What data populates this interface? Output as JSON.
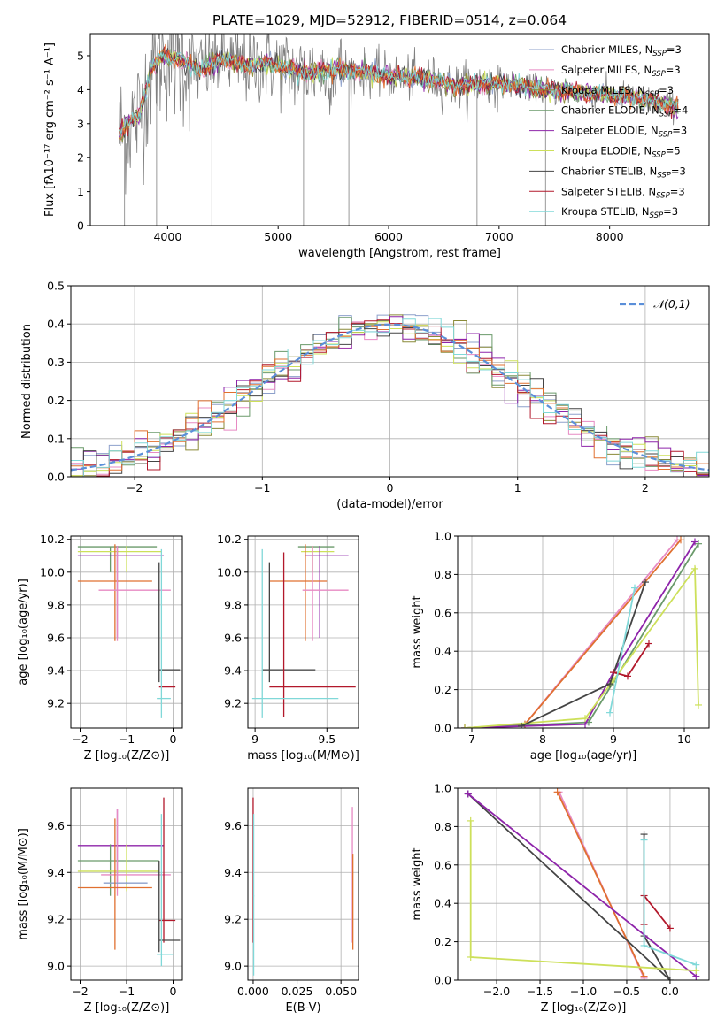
{
  "figure_title": "PLATE=1029, MJD=52912, FIBERID=0514, z=0.064",
  "colors": {
    "chabrier_miles": "#8da0cb",
    "salpeter_miles": "#e78ac3",
    "kroupa_miles": "#8a8a38",
    "chabrier_elodie": "#6a9a6a",
    "salpeter_elodie": "#8e24aa",
    "kroupa_elodie": "#cde05a",
    "chabrier_stelib": "#444444",
    "salpeter_stelib": "#b2182b",
    "kroupa_stelib": "#80d8d8",
    "data": "#808080",
    "orange": "#e07030",
    "normal": "#5b8fd9",
    "grid": "#b0b0b0"
  },
  "chart_data": [
    {
      "id": "spectrum",
      "type": "line",
      "title": "PLATE=1029, MJD=52912, FIBERID=0514, z=0.064",
      "xlabel": "wavelength [Angstrom, rest frame]",
      "ylabel": "Flux [fλ10⁻¹⁷ erg cm⁻² s⁻¹ A⁻¹]",
      "xlim": [
        3300,
        8900
      ],
      "ylim": [
        0,
        5.65
      ],
      "xticks": [
        4000,
        5000,
        6000,
        7000,
        8000
      ],
      "yticks": [
        0,
        1,
        2,
        3,
        4,
        5
      ],
      "legend_placement": "upper-right",
      "legend": [
        {
          "name": "Chabrier MILES, N",
          "sub": "SSP",
          "suffix": "=3"
        },
        {
          "name": "Salpeter MILES, N",
          "sub": "SSP",
          "suffix": "=3"
        },
        {
          "name": "Kroupa MILES, N",
          "sub": "SSP",
          "suffix": "=3"
        },
        {
          "name": "Chabrier ELODIE, N",
          "sub": "SSP",
          "suffix": "=4"
        },
        {
          "name": "Salpeter ELODIE, N",
          "sub": "SSP",
          "suffix": "=3"
        },
        {
          "name": "Kroupa ELODIE, N",
          "sub": "SSP",
          "suffix": "=5"
        },
        {
          "name": "Chabrier STELIB, N",
          "sub": "SSP",
          "suffix": "=3"
        },
        {
          "name": "Salpeter STELIB, N",
          "sub": "SSP",
          "suffix": "=3"
        },
        {
          "name": "Kroupa STELIB, N",
          "sub": "SSP",
          "suffix": "=3"
        }
      ],
      "model_trend": [
        [
          3560,
          2.7
        ],
        [
          3650,
          3.0
        ],
        [
          3750,
          3.3
        ],
        [
          3850,
          4.6
        ],
        [
          3950,
          5.0
        ],
        [
          4100,
          4.9
        ],
        [
          4300,
          4.6
        ],
        [
          4500,
          4.9
        ],
        [
          4700,
          4.7
        ],
        [
          4900,
          4.8
        ],
        [
          5200,
          4.5
        ],
        [
          5600,
          4.6
        ],
        [
          6000,
          4.4
        ],
        [
          6400,
          4.3
        ],
        [
          6600,
          4.1
        ],
        [
          7000,
          4.2
        ],
        [
          7400,
          4.0
        ],
        [
          7800,
          3.9
        ],
        [
          8200,
          3.8
        ],
        [
          8600,
          3.5
        ]
      ]
    },
    {
      "id": "residuals",
      "type": "histogram",
      "xlabel": "(data-model)/error",
      "ylabel": "Normed distribution",
      "xlim": [
        -2.5,
        2.5
      ],
      "ylim": [
        0,
        0.5
      ],
      "xticks": [
        -2,
        -1,
        0,
        1,
        2
      ],
      "yticks": [
        0.0,
        0.1,
        0.2,
        0.3,
        0.4,
        0.5
      ],
      "legend": "𝒩(0,1)",
      "legend_placement": "upper-right",
      "bin_width": 0.1,
      "bin_start": -2.5
    },
    {
      "id": "age_vs_Z",
      "type": "errorbar",
      "xlabel": "Z [log₁₀(Z/Z⊙)]",
      "ylabel": "age  [log₁₀(age/yr)]",
      "xlim": [
        -2.2,
        0.2
      ],
      "ylim": [
        9.05,
        10.22
      ],
      "xticks": [
        -2,
        -1,
        0
      ],
      "yticks": [
        9.2,
        9.4,
        9.6,
        9.8,
        10.0,
        10.2
      ],
      "points": [
        {
          "c": "chabrier_elodie",
          "x": -1.35,
          "xe": [
            -2.05,
            -0.35
          ],
          "y": 10.155,
          "ye": [
            10.0,
            10.155
          ]
        },
        {
          "c": "kroupa_elodie",
          "x": -1.0,
          "xe": [
            -2.05,
            -0.25
          ],
          "y": 10.125,
          "ye": [
            10.0,
            10.16
          ]
        },
        {
          "c": "salpeter_elodie",
          "x": -1.2,
          "xe": [
            -2.05,
            -0.2
          ],
          "y": 10.1,
          "ye": [
            9.6,
            10.16
          ]
        },
        {
          "c": "orange",
          "x": -1.25,
          "xe": [
            -2.05,
            -0.45
          ],
          "y": 9.945,
          "ye": [
            9.58,
            10.17
          ]
        },
        {
          "c": "salpeter_miles",
          "x": -1.2,
          "xe": [
            -1.6,
            -0.05
          ],
          "y": 9.89,
          "ye": [
            9.58,
            10.16
          ]
        },
        {
          "c": "chabrier_stelib",
          "x": -0.3,
          "xe": [
            -0.3,
            0.15
          ],
          "y": 9.405,
          "ye": [
            9.33,
            10.06
          ]
        },
        {
          "c": "salpeter_stelib",
          "x": -0.2,
          "xe": [
            -0.3,
            0.05
          ],
          "y": 9.3,
          "ye": [
            9.3,
            9.3
          ]
        },
        {
          "c": "kroupa_stelib",
          "x": -0.25,
          "xe": [
            -0.35,
            -0.05
          ],
          "y": 9.23,
          "ye": [
            9.11,
            10.14
          ]
        }
      ]
    },
    {
      "id": "age_vs_mass",
      "type": "errorbar",
      "xlabel": "mass [log₁₀(M/M⊙)]",
      "ylabel": "",
      "xlim": [
        8.95,
        9.72
      ],
      "ylim": [
        9.05,
        10.22
      ],
      "xticks": [
        9.0,
        9.5
      ],
      "yticks": [
        9.2,
        9.4,
        9.6,
        9.8,
        10.0,
        10.2
      ],
      "points": [
        {
          "c": "chabrier_elodie",
          "x": 9.45,
          "xe": [
            9.3,
            9.55
          ],
          "y": 10.155,
          "ye": [
            10.0,
            10.16
          ]
        },
        {
          "c": "kroupa_elodie",
          "x": 9.4,
          "xe": [
            9.32,
            9.55
          ],
          "y": 10.125,
          "ye": [
            10.0,
            10.16
          ]
        },
        {
          "c": "salpeter_elodie",
          "x": 9.45,
          "xe": [
            9.35,
            9.65
          ],
          "y": 10.1,
          "ye": [
            9.6,
            10.16
          ]
        },
        {
          "c": "orange",
          "x": 9.35,
          "xe": [
            9.1,
            9.5
          ],
          "y": 9.945,
          "ye": [
            9.58,
            10.17
          ]
        },
        {
          "c": "salpeter_miles",
          "x": 9.4,
          "xe": [
            9.33,
            9.65
          ],
          "y": 9.89,
          "ye": [
            9.58,
            10.16
          ]
        },
        {
          "c": "chabrier_stelib",
          "x": 9.1,
          "xe": [
            9.05,
            9.42
          ],
          "y": 9.405,
          "ye": [
            9.33,
            10.06
          ]
        },
        {
          "c": "salpeter_stelib",
          "x": 9.2,
          "xe": [
            9.1,
            9.7
          ],
          "y": 9.3,
          "ye": [
            9.12,
            10.12
          ]
        },
        {
          "c": "kroupa_stelib",
          "x": 9.05,
          "xe": [
            8.98,
            9.58
          ],
          "y": 9.23,
          "ye": [
            9.11,
            10.14
          ]
        }
      ]
    },
    {
      "id": "weight_vs_age",
      "type": "line",
      "xlabel": "age  [log₁₀(age/yr)]",
      "ylabel": "mass weight",
      "xlim": [
        6.8,
        10.35
      ],
      "ylim": [
        0,
        1
      ],
      "xticks": [
        7,
        8,
        9,
        10
      ],
      "yticks": [
        0.0,
        0.2,
        0.4,
        0.6,
        0.8,
        1.0
      ],
      "series": [
        {
          "c": "salpeter_miles",
          "points": [
            [
              6.9,
              0.0
            ],
            [
              7.75,
              0.02
            ],
            [
              9.9,
              0.98
            ]
          ]
        },
        {
          "c": "orange",
          "points": [
            [
              6.9,
              0.0
            ],
            [
              7.75,
              0.02
            ],
            [
              9.95,
              0.98
            ]
          ]
        },
        {
          "c": "chabrier_elodie",
          "points": [
            [
              6.9,
              0.0
            ],
            [
              8.65,
              0.03
            ],
            [
              9.0,
              0.24
            ],
            [
              10.2,
              0.96
            ]
          ]
        },
        {
          "c": "salpeter_elodie",
          "points": [
            [
              6.9,
              0.0
            ],
            [
              8.6,
              0.02
            ],
            [
              9.0,
              0.29
            ],
            [
              10.15,
              0.97
            ]
          ]
        },
        {
          "c": "kroupa_elodie",
          "points": [
            [
              6.9,
              0.0
            ],
            [
              8.6,
              0.05
            ],
            [
              9.0,
              0.25
            ],
            [
              10.15,
              0.83
            ],
            [
              10.2,
              0.12
            ]
          ]
        },
        {
          "c": "chabrier_stelib",
          "points": [
            [
              7.7,
              0.01
            ],
            [
              8.95,
              0.23
            ],
            [
              9.45,
              0.76
            ]
          ]
        },
        {
          "c": "salpeter_stelib",
          "points": [
            [
              9.0,
              0.29
            ],
            [
              9.2,
              0.27
            ],
            [
              9.5,
              0.44
            ]
          ]
        },
        {
          "c": "kroupa_stelib",
          "points": [
            [
              8.95,
              0.08
            ],
            [
              9.3,
              0.73
            ]
          ]
        }
      ]
    },
    {
      "id": "mass_vs_Z",
      "type": "errorbar",
      "xlabel": "Z [log₁₀(Z/Z⊙)]",
      "ylabel": "mass [log₁₀(M/M⊙)]",
      "xlim": [
        -2.2,
        0.2
      ],
      "ylim": [
        8.94,
        9.76
      ],
      "xticks": [
        -2,
        -1,
        0
      ],
      "yticks": [
        9.0,
        9.2,
        9.4,
        9.6
      ],
      "points": [
        {
          "c": "salpeter_elodie",
          "x": -1.2,
          "xe": [
            -2.05,
            -0.2
          ],
          "y": 9.515,
          "ye": [
            9.36,
            9.67
          ]
        },
        {
          "c": "chabrier_elodie",
          "x": -1.35,
          "xe": [
            -2.05,
            -0.3
          ],
          "y": 9.45,
          "ye": [
            9.3,
            9.52
          ]
        },
        {
          "c": "kroupa_elodie",
          "x": -1.0,
          "xe": [
            -2.05,
            -0.3
          ],
          "y": 9.405,
          "ye": [
            9.32,
            9.52
          ]
        },
        {
          "c": "salpeter_miles",
          "x": -1.2,
          "xe": [
            -1.55,
            -0.05
          ],
          "y": 9.39,
          "ye": [
            9.3,
            9.67
          ]
        },
        {
          "c": "chabrier_miles",
          "x": -1.0,
          "xe": [
            -1.5,
            -0.55
          ],
          "y": 9.355,
          "ye": [
            9.35,
            9.36
          ]
        },
        {
          "c": "orange",
          "x": -1.25,
          "xe": [
            -2.05,
            -0.45
          ],
          "y": 9.335,
          "ye": [
            9.07,
            9.63
          ]
        },
        {
          "c": "salpeter_stelib",
          "x": -0.2,
          "xe": [
            -0.3,
            0.05
          ],
          "y": 9.195,
          "ye": [
            9.1,
            9.72
          ]
        },
        {
          "c": "chabrier_stelib",
          "x": -0.3,
          "xe": [
            -0.3,
            0.15
          ],
          "y": 9.11,
          "ye": [
            9.06,
            9.45
          ]
        },
        {
          "c": "kroupa_stelib",
          "x": -0.25,
          "xe": [
            -0.35,
            0.0
          ],
          "y": 9.05,
          "ye": [
            9.0,
            9.65
          ]
        }
      ]
    },
    {
      "id": "mass_vs_ebv",
      "type": "errorbar",
      "xlabel": "E(B-V)",
      "ylabel": "",
      "xlim": [
        -0.003,
        0.06
      ],
      "ylim": [
        8.94,
        9.76
      ],
      "xticks": [
        0.0,
        0.025,
        0.05
      ],
      "xtick_labels": [
        "0.000",
        "0.025",
        "0.050"
      ],
      "yticks": [
        9.0,
        9.2,
        9.4,
        9.6
      ],
      "points": [
        {
          "c": "salpeter_stelib",
          "x": 0.0,
          "xe": [
            0.0,
            0.0
          ],
          "y": 9.2,
          "ye": [
            9.1,
            9.72
          ]
        },
        {
          "c": "kroupa_stelib",
          "x": 0.0003,
          "xe": [
            0.0,
            0.0006
          ],
          "y": 9.3,
          "ye": [
            8.96,
            9.65
          ]
        },
        {
          "c": "salpeter_miles",
          "x": 0.0565,
          "xe": [
            0.0565,
            0.0565
          ],
          "y": 9.35,
          "ye": [
            9.1,
            9.68
          ]
        },
        {
          "c": "orange",
          "x": 0.0568,
          "xe": [
            0.0568,
            0.0568
          ],
          "y": 9.3,
          "ye": [
            9.07,
            9.48
          ]
        }
      ]
    },
    {
      "id": "weight_vs_Z",
      "type": "line",
      "xlabel": "Z [log₁₀(Z/Z⊙)]",
      "ylabel": "mass weight",
      "xlim": [
        -2.45,
        0.45
      ],
      "ylim": [
        0,
        1
      ],
      "xticks": [
        -2.0,
        -1.5,
        -1.0,
        -0.5,
        0.0
      ],
      "xtick_labels": [
        "−2.0",
        "−1.5",
        "−1.0",
        "−0.5",
        "0.0"
      ],
      "yticks": [
        0.0,
        0.2,
        0.4,
        0.6,
        0.8,
        1.0
      ],
      "series": [
        {
          "c": "salpeter_miles",
          "points": [
            [
              -1.28,
              0.98
            ],
            [
              -0.3,
              0.01
            ]
          ]
        },
        {
          "c": "orange",
          "points": [
            [
              -1.3,
              0.98
            ],
            [
              -0.3,
              0.02
            ]
          ]
        },
        {
          "c": "chabrier_stelib",
          "points": [
            [
              -2.33,
              0.97
            ],
            [
              0.0,
              0.0
            ],
            [
              -0.3,
              0.23
            ],
            [
              -0.3,
              0.76
            ]
          ]
        },
        {
          "c": "salpeter_elodie",
          "points": [
            [
              -2.33,
              0.97
            ],
            [
              0.3,
              0.02
            ]
          ]
        },
        {
          "c": "kroupa_elodie",
          "points": [
            [
              -2.3,
              0.83
            ],
            [
              -2.3,
              0.12
            ],
            [
              0.3,
              0.05
            ]
          ]
        },
        {
          "c": "salpeter_stelib",
          "points": [
            [
              -0.3,
              0.29
            ],
            [
              -0.3,
              0.44
            ],
            [
              0.0,
              0.27
            ]
          ]
        },
        {
          "c": "kroupa_stelib",
          "points": [
            [
              -0.3,
              0.73
            ],
            [
              -0.3,
              0.18
            ],
            [
              0.3,
              0.08
            ]
          ]
        }
      ]
    }
  ]
}
